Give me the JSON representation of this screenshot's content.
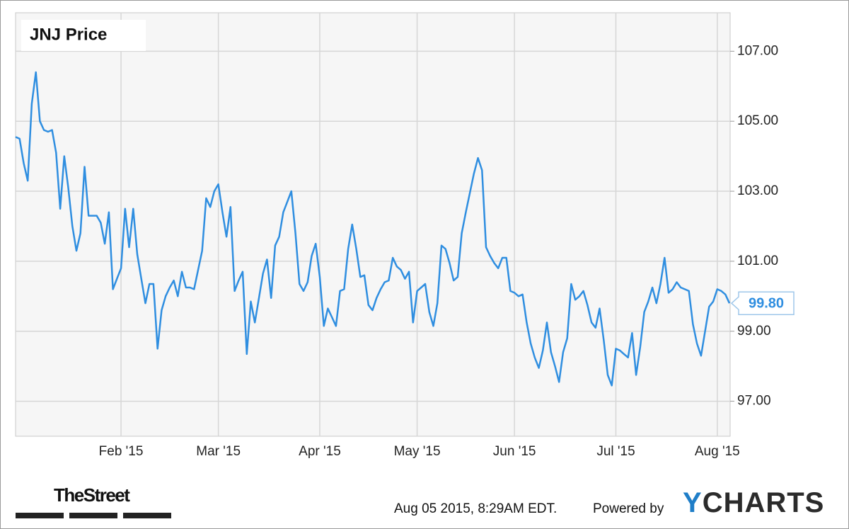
{
  "chart_data": {
    "type": "line",
    "title": "JNJ Price",
    "color": "#2f8ee0",
    "grid": true,
    "ylim": [
      96,
      108.1
    ],
    "yticks": [
      {
        "value": 97,
        "label": "97.00"
      },
      {
        "value": 99,
        "label": "99.00"
      },
      {
        "value": 101,
        "label": "101.00"
      },
      {
        "value": 103,
        "label": "103.00"
      },
      {
        "value": 105,
        "label": "105.00"
      },
      {
        "value": 107,
        "label": "107.00"
      }
    ],
    "current": {
      "value": 99.8,
      "label": "99.80"
    },
    "categories": [
      null,
      null,
      null,
      null,
      null,
      null,
      null,
      null,
      null,
      null,
      null,
      null,
      null,
      null,
      null,
      null,
      null,
      null,
      null,
      null,
      null,
      null,
      null,
      null,
      null,
      null,
      "Feb '15",
      null,
      null,
      null,
      null,
      null,
      null,
      null,
      null,
      null,
      null,
      null,
      null,
      null,
      null,
      null,
      null,
      null,
      null,
      null,
      null,
      null,
      null,
      null,
      "Mar '15",
      null,
      null,
      null,
      null,
      null,
      null,
      null,
      null,
      null,
      null,
      null,
      null,
      null,
      null,
      null,
      null,
      null,
      null,
      null,
      null,
      null,
      null,
      null,
      null,
      "Apr '15",
      null,
      null,
      null,
      null,
      null,
      null,
      null,
      null,
      null,
      null,
      null,
      null,
      null,
      null,
      null,
      null,
      null,
      null,
      null,
      null,
      null,
      null,
      null,
      "May '15",
      null,
      null,
      null,
      null,
      null,
      null,
      null,
      null,
      null,
      null,
      null,
      null,
      null,
      null,
      null,
      null,
      null,
      null,
      null,
      null,
      null,
      null,
      null,
      "Jun '15",
      null,
      null,
      null,
      null,
      null,
      null,
      null,
      null,
      null,
      null,
      null,
      null,
      null,
      null,
      null,
      null,
      null,
      null,
      null,
      null,
      null,
      null,
      null,
      null,
      "Jul '15",
      null,
      null,
      null,
      null,
      null,
      null,
      null,
      null,
      null,
      null,
      null,
      null,
      null,
      null,
      null,
      null,
      null,
      null,
      null,
      null,
      null,
      null,
      null,
      null,
      "Aug '15",
      null,
      null,
      null
    ],
    "values": [
      104.55,
      104.5,
      103.8,
      103.3,
      105.5,
      106.4,
      105.0,
      104.75,
      104.7,
      104.75,
      104.1,
      102.5,
      104.0,
      103.1,
      102.0,
      101.3,
      101.8,
      103.7,
      102.3,
      102.3,
      102.3,
      102.1,
      101.5,
      102.4,
      100.2,
      100.5,
      100.8,
      102.5,
      101.4,
      102.5,
      101.2,
      100.5,
      99.8,
      100.35,
      100.35,
      98.5,
      99.6,
      100.0,
      100.25,
      100.45,
      100.0,
      100.7,
      100.25,
      100.25,
      100.2,
      100.75,
      101.3,
      102.8,
      102.55,
      103.0,
      103.2,
      102.4,
      101.7,
      102.55,
      100.15,
      100.45,
      100.7,
      98.35,
      99.85,
      99.25,
      99.95,
      100.65,
      101.05,
      99.95,
      101.45,
      101.7,
      102.4,
      102.7,
      103.0,
      101.8,
      100.35,
      100.15,
      100.4,
      101.15,
      101.5,
      100.55,
      99.15,
      99.65,
      99.4,
      99.15,
      100.15,
      100.2,
      101.35,
      102.05,
      101.35,
      100.55,
      100.6,
      99.75,
      99.6,
      99.95,
      100.2,
      100.4,
      100.45,
      101.1,
      100.85,
      100.75,
      100.5,
      100.7,
      99.25,
      100.15,
      100.25,
      100.35,
      99.55,
      99.15,
      99.8,
      101.45,
      101.35,
      100.95,
      100.45,
      100.55,
      101.8,
      102.4,
      102.95,
      103.5,
      103.95,
      103.6,
      101.4,
      101.15,
      100.95,
      100.8,
      101.1,
      101.1,
      100.15,
      100.1,
      100.0,
      100.05,
      99.25,
      98.65,
      98.25,
      97.95,
      98.45,
      99.25,
      98.4,
      98.0,
      97.55,
      98.4,
      98.8,
      100.35,
      99.9,
      100.0,
      100.15,
      99.75,
      99.25,
      99.1,
      99.65,
      98.75,
      97.75,
      97.45,
      98.5,
      98.45,
      98.35,
      98.25,
      98.95,
      97.75,
      98.55,
      99.55,
      99.85,
      100.25,
      99.8,
      100.35,
      101.1,
      100.1,
      100.2,
      100.4,
      100.25,
      100.2,
      100.15,
      99.2,
      98.65,
      98.3,
      99.0,
      99.7,
      99.85,
      100.2,
      100.15,
      100.05,
      99.8
    ]
  },
  "footer": {
    "source": "TheStreet",
    "timestamp": "Aug 05 2015, 8:29AM EDT.",
    "powered": "Powered by",
    "brand": "YCHARTS"
  }
}
